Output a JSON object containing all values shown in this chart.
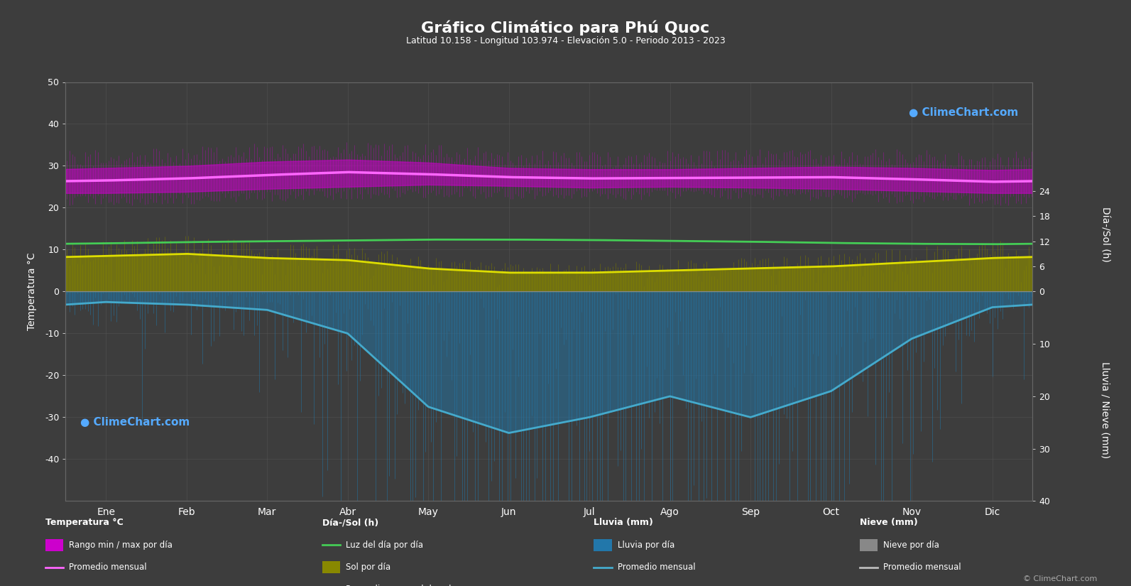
{
  "title": "Gráfico Climático para Phú Quoc",
  "subtitle": "Latitud 10.158 - Longitud 103.974 - Elevación 5.0 - Periodo 2013 - 2023",
  "months": [
    "Ene",
    "Feb",
    "Mar",
    "Abr",
    "May",
    "Jun",
    "Jul",
    "Ago",
    "Sep",
    "Oct",
    "Nov",
    "Dic"
  ],
  "background_color": "#3d3d3d",
  "temp_min_monthly": [
    23.5,
    23.8,
    24.5,
    25.0,
    25.5,
    25.2,
    24.8,
    25.0,
    24.8,
    24.5,
    24.0,
    23.5
  ],
  "temp_max_monthly": [
    29.5,
    30.0,
    31.0,
    31.5,
    30.8,
    29.5,
    29.2,
    29.2,
    29.5,
    29.8,
    29.5,
    29.0
  ],
  "temp_avg_monthly": [
    26.5,
    27.0,
    27.8,
    28.5,
    28.0,
    27.3,
    27.0,
    27.1,
    27.2,
    27.3,
    26.8,
    26.2
  ],
  "daylight_monthly": [
    11.5,
    11.8,
    12.0,
    12.2,
    12.4,
    12.4,
    12.3,
    12.1,
    11.9,
    11.6,
    11.4,
    11.3
  ],
  "sunshine_monthly": [
    8.5,
    9.0,
    8.0,
    7.5,
    5.5,
    4.5,
    4.5,
    5.0,
    5.5,
    6.0,
    7.0,
    8.0
  ],
  "rainfall_monthly": [
    2.0,
    2.5,
    3.5,
    8.0,
    22.0,
    27.0,
    24.0,
    20.0,
    24.0,
    19.0,
    9.0,
    3.0
  ],
  "temp_ylim": [
    -50,
    50
  ],
  "temp_yticks": [
    -40,
    -30,
    -20,
    -10,
    0,
    10,
    20,
    30,
    40,
    50
  ],
  "sun_ticks_h": [
    0,
    6,
    12,
    18,
    24
  ],
  "rain_ticks_mm": [
    0,
    10,
    20,
    30,
    40
  ],
  "rain_scale": 1.25,
  "grid_color": "#555555",
  "temp_band_color": "#cc00cc",
  "temp_avg_color": "#ff66ff",
  "daylight_color": "#44cc55",
  "sunshine_fill_color": "#888800",
  "sunshine_line_color": "#dddd00",
  "rain_fill_color": "#2277aa",
  "rain_line_color": "#44aacc",
  "snow_fill_color": "#888888",
  "snow_line_color": "#bbbbbb"
}
